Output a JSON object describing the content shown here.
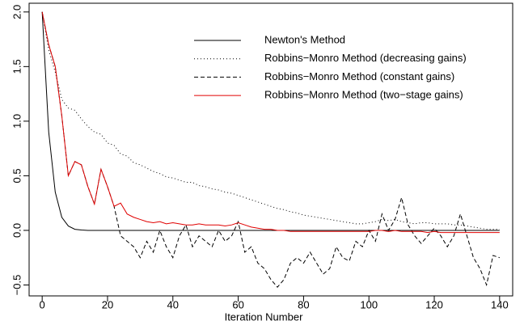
{
  "chart_data": {
    "type": "line",
    "x_label": "Iteration Number",
    "x": [
      0,
      2,
      4,
      6,
      8,
      10,
      12,
      14,
      16,
      18,
      20,
      22,
      24,
      26,
      28,
      30,
      32,
      34,
      36,
      38,
      40,
      42,
      44,
      46,
      48,
      50,
      52,
      54,
      56,
      58,
      60,
      62,
      64,
      66,
      68,
      70,
      72,
      74,
      76,
      78,
      80,
      82,
      84,
      86,
      88,
      90,
      92,
      94,
      96,
      98,
      100,
      102,
      104,
      106,
      108,
      110,
      112,
      114,
      116,
      118,
      120,
      122,
      124,
      126,
      128,
      130,
      132,
      134,
      136,
      138,
      140
    ],
    "xlim": [
      -4,
      144
    ],
    "xticks": [
      0,
      20,
      40,
      60,
      80,
      100,
      120,
      140
    ],
    "ylim": [
      -0.6,
      2.08
    ],
    "yticks": [
      {
        "value": -0.5,
        "label": "−0.5"
      },
      {
        "value": 0,
        "label": "0.0"
      },
      0.5,
      {
        "value": 1,
        "label": "1.0"
      },
      1.5,
      {
        "value": 2,
        "label": "2.0"
      }
    ],
    "legend": "top-right",
    "series": [
      {
        "name": "Newton's Method",
        "color": "#000000",
        "line_style": "solid",
        "values": [
          2,
          0.9,
          0.35,
          0.12,
          0.04,
          0.01,
          0.003,
          0,
          0,
          0,
          0,
          0,
          0,
          0,
          0,
          0,
          0,
          0,
          0,
          0,
          0,
          0,
          0,
          0,
          0,
          0,
          0,
          0,
          0,
          0,
          0,
          0,
          0,
          0,
          0,
          0,
          0,
          0,
          0,
          0,
          0,
          0,
          0,
          0,
          0,
          0,
          0,
          0,
          0,
          0,
          0,
          0,
          0,
          0,
          0,
          0,
          0,
          0,
          0,
          0,
          0,
          0,
          0,
          0,
          0,
          0,
          0,
          0,
          0,
          0,
          0
        ]
      },
      {
        "name": "Robbins−Monro Method (decreasing gains)",
        "color": "#000000",
        "line_style": "dotted",
        "values": [
          2,
          1.65,
          1.45,
          1.2,
          1.12,
          1.1,
          1.02,
          0.95,
          0.9,
          0.88,
          0.8,
          0.78,
          0.7,
          0.68,
          0.62,
          0.6,
          0.57,
          0.54,
          0.52,
          0.49,
          0.48,
          0.46,
          0.44,
          0.44,
          0.41,
          0.4,
          0.38,
          0.37,
          0.35,
          0.34,
          0.32,
          0.3,
          0.28,
          0.26,
          0.24,
          0.22,
          0.2,
          0.19,
          0.17,
          0.16,
          0.14,
          0.13,
          0.12,
          0.11,
          0.1,
          0.09,
          0.08,
          0.07,
          0.06,
          0.06,
          0.07,
          0.08,
          0.1,
          0.09,
          0.1,
          0.08,
          0.07,
          0.06,
          0.07,
          0.07,
          0.06,
          0.06,
          0.06,
          0.05,
          0.05,
          0.04,
          0.03,
          0.02,
          0.01,
          0.01,
          0.01
        ]
      },
      {
        "name": "Robbins−Monro Method (constant gains)",
        "color": "#000000",
        "line_style": "dashed",
        "values": [
          2,
          1.7,
          1.5,
          1.05,
          0.5,
          0.63,
          0.6,
          0.4,
          0.24,
          0.56,
          0.4,
          0.22,
          -0.05,
          -0.1,
          -0.15,
          -0.25,
          -0.1,
          -0.2,
          0,
          -0.15,
          -0.25,
          -0.05,
          0.05,
          -0.15,
          -0.05,
          -0.1,
          -0.15,
          0,
          -0.1,
          -0.05,
          0.08,
          -0.2,
          -0.15,
          -0.3,
          -0.35,
          -0.45,
          -0.52,
          -0.45,
          -0.3,
          -0.25,
          -0.3,
          -0.2,
          -0.3,
          -0.4,
          -0.35,
          -0.15,
          -0.25,
          -0.28,
          -0.1,
          -0.15,
          0,
          -0.1,
          0.15,
          0,
          0.1,
          0.3,
          0.05,
          -0.05,
          -0.12,
          -0.05,
          0.02,
          -0.05,
          -0.15,
          -0.05,
          0.15,
          -0.05,
          -0.25,
          -0.35,
          -0.5,
          -0.23,
          -0.25
        ]
      },
      {
        "name": "Robbins−Monro Method (two−stage gains)",
        "color": "#e00000",
        "line_style": "solid",
        "values": [
          2,
          1.7,
          1.5,
          1.05,
          0.5,
          0.63,
          0.6,
          0.4,
          0.24,
          0.56,
          0.4,
          0.22,
          0.25,
          0.15,
          0.12,
          0.1,
          0.08,
          0.07,
          0.08,
          0.06,
          0.07,
          0.06,
          0.05,
          0.05,
          0.06,
          0.05,
          0.05,
          0.05,
          0.04,
          0.05,
          0.07,
          0.05,
          0.03,
          0.02,
          0.01,
          0.01,
          0,
          0,
          -0.01,
          -0.01,
          -0.01,
          -0.01,
          -0.01,
          -0.01,
          -0.01,
          -0.01,
          -0.01,
          -0.01,
          -0.01,
          -0.01,
          -0.01,
          0,
          0,
          -0.01,
          0,
          -0.01,
          -0.01,
          -0.01,
          -0.01,
          -0.02,
          -0.01,
          -0.02,
          -0.02,
          -0.02,
          -0.02,
          -0.02,
          -0.02,
          -0.02,
          -0.02,
          -0.02,
          -0.02
        ]
      }
    ]
  }
}
